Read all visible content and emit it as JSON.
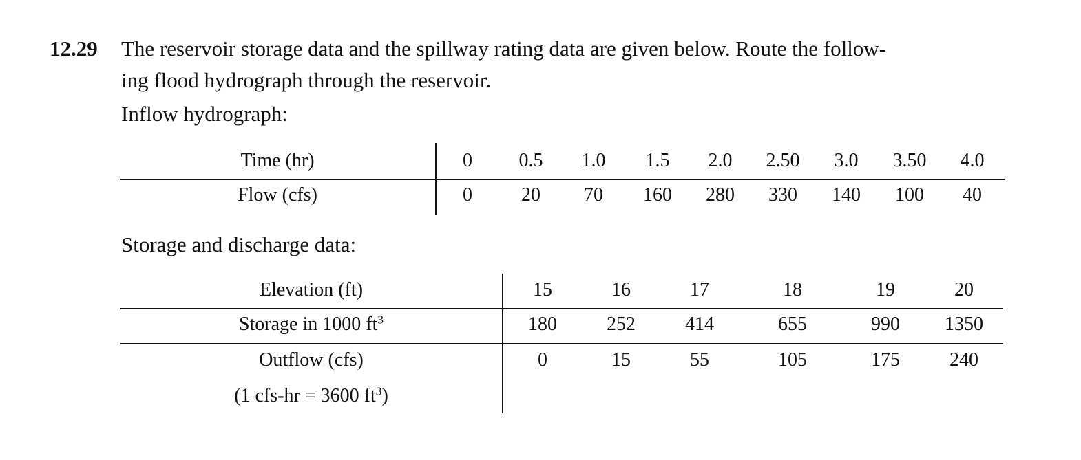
{
  "problem": {
    "number": "12.29",
    "line1": "The reservoir storage data and the spillway rating data are given below. Route the follow-",
    "line2": "ing flood hydrograph through the reservoir."
  },
  "inflow": {
    "label": "Inflow hydrograph:",
    "time_header": "Time (hr)",
    "flow_header": "Flow (cfs)",
    "time": [
      "0",
      "0.5",
      "1.0",
      "1.5",
      "2.0",
      "2.50",
      "3.0",
      "3.50",
      "4.0"
    ],
    "flow": [
      "0",
      "20",
      "70",
      "160",
      "280",
      "330",
      "140",
      "100",
      "40"
    ]
  },
  "storage": {
    "label": "Storage and discharge data:",
    "elevation_header": "Elevation (ft)",
    "storage_header": "Storage in 1000 ft",
    "storage_header_sup": "3",
    "outflow_header": "Outflow (cfs)",
    "note_prefix": "(1 cfs-hr = 3600 ft",
    "note_sup": "3",
    "note_suffix": ")",
    "elevation": [
      "15",
      "16",
      "17",
      "18",
      "19",
      "20"
    ],
    "storage": [
      "180",
      "252",
      "414",
      "655",
      "990",
      "1350"
    ],
    "outflow": [
      "0",
      "15",
      "55",
      "105",
      "175",
      "240"
    ]
  }
}
